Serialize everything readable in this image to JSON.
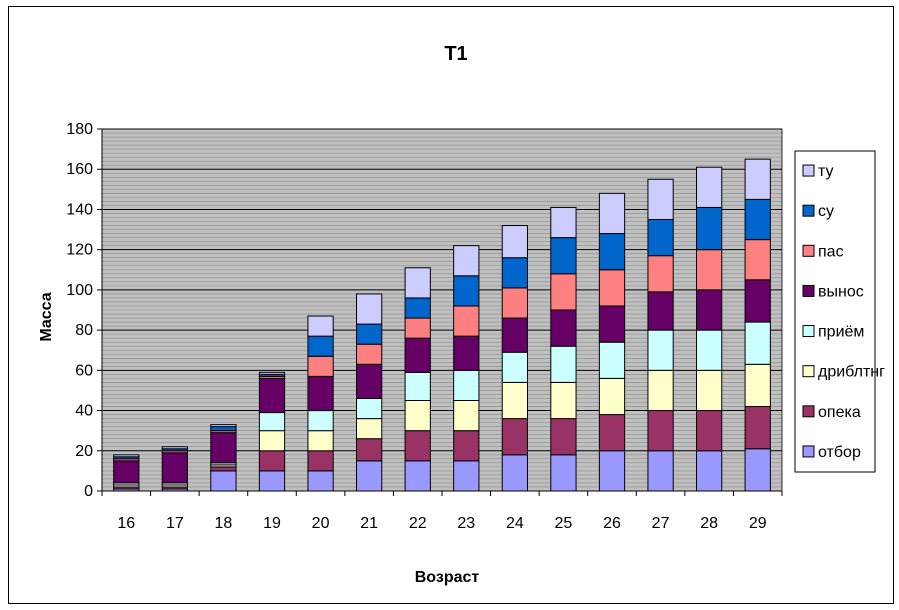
{
  "chart_data": {
    "type": "bar",
    "stacked": true,
    "title": "Т1",
    "xlabel": "Возраст",
    "ylabel": "Масса",
    "ylim": [
      0,
      180
    ],
    "yticks": [
      0,
      20,
      40,
      60,
      80,
      100,
      120,
      140,
      160,
      180
    ],
    "grid": true,
    "legend_position": "right",
    "categories": [
      "16",
      "17",
      "18",
      "19",
      "20",
      "21",
      "22",
      "23",
      "24",
      "25",
      "26",
      "27",
      "28",
      "29"
    ],
    "series": [
      {
        "name": "отбор",
        "color": "#9999ff",
        "values": [
          1,
          1,
          10,
          10,
          10,
          15,
          15,
          15,
          18,
          18,
          20,
          20,
          20,
          21
        ]
      },
      {
        "name": "опека",
        "color": "#993366",
        "values": [
          1,
          1,
          2,
          10,
          10,
          11,
          15,
          15,
          18,
          18,
          18,
          20,
          20,
          21
        ]
      },
      {
        "name": "дриблтнг",
        "color": "#ffffcc",
        "values": [
          1,
          1,
          1,
          10,
          10,
          10,
          15,
          15,
          18,
          18,
          18,
          20,
          20,
          21
        ]
      },
      {
        "name": "приём",
        "color": "#ccffff",
        "values": [
          1,
          1,
          1,
          9,
          10,
          10,
          14,
          15,
          15,
          18,
          18,
          20,
          20,
          21
        ]
      },
      {
        "name": "вынос",
        "color": "#660066",
        "values": [
          11,
          15,
          15,
          17,
          17,
          17,
          17,
          17,
          17,
          18,
          18,
          19,
          20,
          21
        ]
      },
      {
        "name": "пас",
        "color": "#ff8080",
        "values": [
          1,
          1,
          1,
          1,
          10,
          10,
          10,
          15,
          15,
          18,
          18,
          18,
          20,
          20
        ]
      },
      {
        "name": "су",
        "color": "#0066cc",
        "values": [
          1,
          1,
          2,
          1,
          10,
          10,
          10,
          15,
          15,
          18,
          18,
          18,
          21,
          20
        ]
      },
      {
        "name": "ту",
        "color": "#ccccff",
        "values": [
          1,
          1,
          1,
          1,
          10,
          15,
          15,
          15,
          16,
          15,
          20,
          20,
          20,
          20
        ]
      }
    ]
  }
}
